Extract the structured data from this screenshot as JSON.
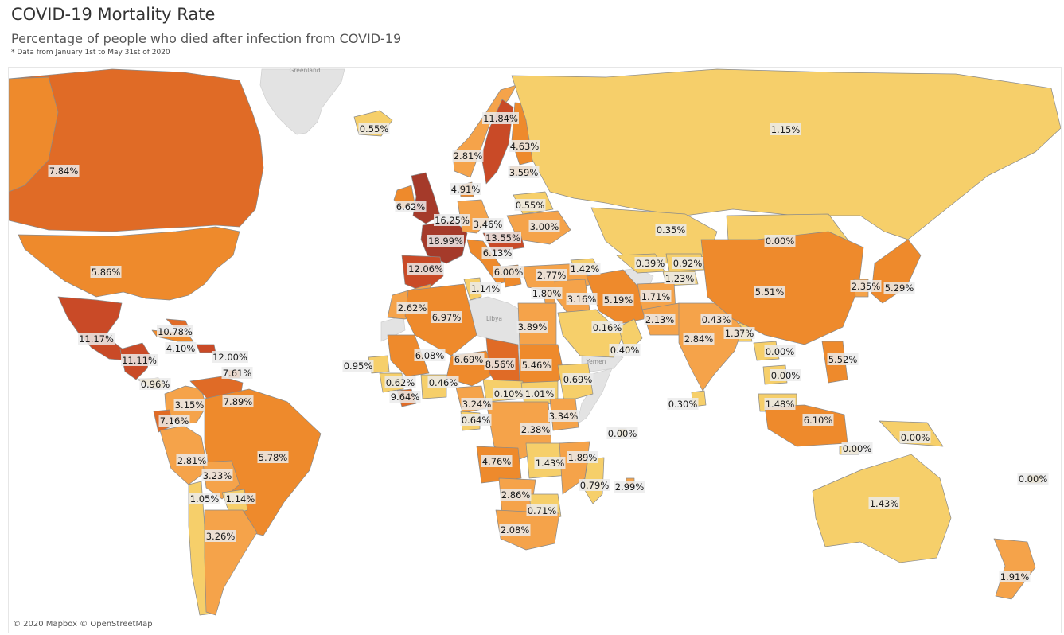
{
  "header": {
    "title": "COVID-19 Mortality Rate",
    "subtitle": "Percentage of people who died after infection from COVID-19",
    "note": "* Data from January 1st to May 31st of 2020"
  },
  "map": {
    "attribution": "© 2020 Mapbox © OpenStreetMap",
    "no_data_color": "#e3e3e3",
    "color_scale": [
      "#f6cf6a",
      "#f5a34a",
      "#ee8a2c",
      "#e06b26",
      "#c94a27",
      "#a53a2a"
    ],
    "region_labels": [
      {
        "id": "greenland",
        "text": "Greenland"
      },
      {
        "id": "libya",
        "text": "Libya"
      },
      {
        "id": "yemen",
        "text": "Yemen"
      }
    ],
    "countries": [
      {
        "id": "canada",
        "rate": 7.84,
        "label": "7.84%"
      },
      {
        "id": "usa",
        "rate": 5.86,
        "label": "5.86%"
      },
      {
        "id": "alaska",
        "rate": 5.86,
        "label": ""
      },
      {
        "id": "mexico",
        "rate": 11.17,
        "label": "11.17%"
      },
      {
        "id": "central-america",
        "rate": 11.11,
        "label": "11.11%"
      },
      {
        "id": "panama",
        "rate": 0.96,
        "label": "0.96%"
      },
      {
        "id": "cuba",
        "rate": 4.1,
        "label": "4.10%"
      },
      {
        "id": "bahamas",
        "rate": 10.78,
        "label": "10.78%"
      },
      {
        "id": "dominican-republic",
        "rate": 12.0,
        "label": "12.00%"
      },
      {
        "id": "trinidad",
        "rate": 7.61,
        "label": "7.61%"
      },
      {
        "id": "colombia",
        "rate": 3.15,
        "label": "3.15%"
      },
      {
        "id": "venezuela",
        "rate": 7.89,
        "label": "7.89%"
      },
      {
        "id": "ecuador",
        "rate": 7.16,
        "label": "7.16%"
      },
      {
        "id": "peru",
        "rate": 2.81,
        "label": "2.81%"
      },
      {
        "id": "brazil",
        "rate": 5.78,
        "label": "5.78%"
      },
      {
        "id": "bolivia",
        "rate": 3.23,
        "label": "3.23%"
      },
      {
        "id": "chile",
        "rate": 1.05,
        "label": "1.05%"
      },
      {
        "id": "paraguay",
        "rate": 1.14,
        "label": "1.14%"
      },
      {
        "id": "argentina",
        "rate": 3.26,
        "label": "3.26%"
      },
      {
        "id": "iceland",
        "rate": 0.55,
        "label": "0.55%"
      },
      {
        "id": "norway",
        "rate": 2.81,
        "label": "2.81%"
      },
      {
        "id": "sweden",
        "rate": 11.84,
        "label": "11.84%"
      },
      {
        "id": "finland",
        "rate": 4.63,
        "label": "4.63%"
      },
      {
        "id": "estonia",
        "rate": 3.59,
        "label": "3.59%"
      },
      {
        "id": "denmark",
        "rate": 4.91,
        "label": "4.91%"
      },
      {
        "id": "ireland",
        "rate": 6.62,
        "label": "6.62%"
      },
      {
        "id": "uk",
        "rate": 16.25,
        "label": "16.25%"
      },
      {
        "id": "france",
        "rate": 18.99,
        "label": "18.99%"
      },
      {
        "id": "germany",
        "rate": 3.46,
        "label": "3.46%"
      },
      {
        "id": "belarus",
        "rate": 0.55,
        "label": "0.55%"
      },
      {
        "id": "ukraine",
        "rate": 3.0,
        "label": "3.00%"
      },
      {
        "id": "hungary",
        "rate": 13.55,
        "label": "13.55%"
      },
      {
        "id": "italy",
        "rate": 6.13,
        "label": "6.13%"
      },
      {
        "id": "spain",
        "rate": 12.06,
        "label": "12.06%"
      },
      {
        "id": "greece",
        "rate": 6.0,
        "label": "6.00%"
      },
      {
        "id": "turkey",
        "rate": 2.77,
        "label": "2.77%"
      },
      {
        "id": "georgia",
        "rate": 1.42,
        "label": "1.42%"
      },
      {
        "id": "tunisia",
        "rate": 1.14,
        "label": "1.14%"
      },
      {
        "id": "morocco",
        "rate": 2.62,
        "label": "2.62%"
      },
      {
        "id": "algeria",
        "rate": 6.97,
        "label": "6.97%"
      },
      {
        "id": "egypt",
        "rate": 3.89,
        "label": "3.89%"
      },
      {
        "id": "israel",
        "rate": 1.8,
        "label": "1.80%"
      },
      {
        "id": "iraq",
        "rate": 3.16,
        "label": "3.16%"
      },
      {
        "id": "iran",
        "rate": 5.19,
        "label": "5.19%"
      },
      {
        "id": "saudi-arabia",
        "rate": 0.16,
        "label": "0.16%"
      },
      {
        "id": "oman",
        "rate": 0.4,
        "label": "0.40%"
      },
      {
        "id": "mauritania",
        "rate": 6.08,
        "label": "6.08%"
      },
      {
        "id": "niger",
        "rate": 6.69,
        "label": "6.69%"
      },
      {
        "id": "chad",
        "rate": 8.56,
        "label": "8.56%"
      },
      {
        "id": "sudan",
        "rate": 5.46,
        "label": "5.46%"
      },
      {
        "id": "senegal",
        "rate": 0.95,
        "label": "0.95%"
      },
      {
        "id": "guinea",
        "rate": 0.62,
        "label": "0.62%"
      },
      {
        "id": "liberia",
        "rate": 9.64,
        "label": "9.64%"
      },
      {
        "id": "ghana",
        "rate": 0.46,
        "label": "0.46%"
      },
      {
        "id": "cameroon",
        "rate": 3.24,
        "label": "3.24%"
      },
      {
        "id": "gabon",
        "rate": 0.64,
        "label": "0.64%"
      },
      {
        "id": "central-african-republic",
        "rate": 0.1,
        "label": "0.10%"
      },
      {
        "id": "south-sudan",
        "rate": 1.01,
        "label": "1.01%"
      },
      {
        "id": "ethiopia",
        "rate": 0.69,
        "label": "0.69%"
      },
      {
        "id": "kenya",
        "rate": 3.34,
        "label": "3.34%"
      },
      {
        "id": "dr-congo",
        "rate": 2.38,
        "label": "2.38%"
      },
      {
        "id": "angola",
        "rate": 4.76,
        "label": "4.76%"
      },
      {
        "id": "malawi",
        "rate": 1.43,
        "label": "1.43%"
      },
      {
        "id": "mozambique",
        "rate": 1.89,
        "label": "1.89%"
      },
      {
        "id": "botswana",
        "rate": 2.86,
        "label": "2.86%"
      },
      {
        "id": "zimbabwe",
        "rate": 0.71,
        "label": "0.71%"
      },
      {
        "id": "south-africa",
        "rate": 2.08,
        "label": "2.08%"
      },
      {
        "id": "madagascar",
        "rate": 0.79,
        "label": "0.79%"
      },
      {
        "id": "mauritius",
        "rate": 2.99,
        "label": "2.99%"
      },
      {
        "id": "seychelles",
        "rate": 0.0,
        "label": "0.00%"
      },
      {
        "id": "russia",
        "rate": 1.15,
        "label": "1.15%"
      },
      {
        "id": "kazakhstan",
        "rate": 0.35,
        "label": "0.35%"
      },
      {
        "id": "mongolia",
        "rate": 0.0,
        "label": "0.00%"
      },
      {
        "id": "uzbekistan",
        "rate": 0.39,
        "label": "0.39%"
      },
      {
        "id": "kyrgyzstan",
        "rate": 0.92,
        "label": "0.92%"
      },
      {
        "id": "tajikistan",
        "rate": 1.23,
        "label": "1.23%"
      },
      {
        "id": "afghanistan",
        "rate": 1.71,
        "label": "1.71%"
      },
      {
        "id": "pakistan",
        "rate": 2.13,
        "label": "2.13%"
      },
      {
        "id": "nepal",
        "rate": 0.43,
        "label": "0.43%"
      },
      {
        "id": "bangladesh",
        "rate": 1.37,
        "label": "1.37%"
      },
      {
        "id": "india",
        "rate": 2.84,
        "label": "2.84%"
      },
      {
        "id": "sri-lanka",
        "rate": 0.3,
        "label": "0.30%"
      },
      {
        "id": "china",
        "rate": 5.51,
        "label": "5.51%"
      },
      {
        "id": "south-korea",
        "rate": 2.35,
        "label": "2.35%"
      },
      {
        "id": "japan",
        "rate": 5.29,
        "label": "5.29%"
      },
      {
        "id": "laos",
        "rate": 0.0,
        "label": "0.00%"
      },
      {
        "id": "cambodia",
        "rate": 0.0,
        "label": "0.00%"
      },
      {
        "id": "philippines",
        "rate": 5.52,
        "label": "5.52%"
      },
      {
        "id": "malaysia",
        "rate": 1.48,
        "label": "1.48%"
      },
      {
        "id": "indonesia",
        "rate": 6.1,
        "label": "6.10%"
      },
      {
        "id": "timor-leste",
        "rate": 0.0,
        "label": "0.00%"
      },
      {
        "id": "papua-new-guinea",
        "rate": 0.0,
        "label": "0.00%"
      },
      {
        "id": "australia",
        "rate": 1.43,
        "label": "1.43%"
      },
      {
        "id": "new-zealand",
        "rate": 1.91,
        "label": "1.91%"
      },
      {
        "id": "fiji",
        "rate": 0.0,
        "label": "0.00%"
      }
    ]
  }
}
